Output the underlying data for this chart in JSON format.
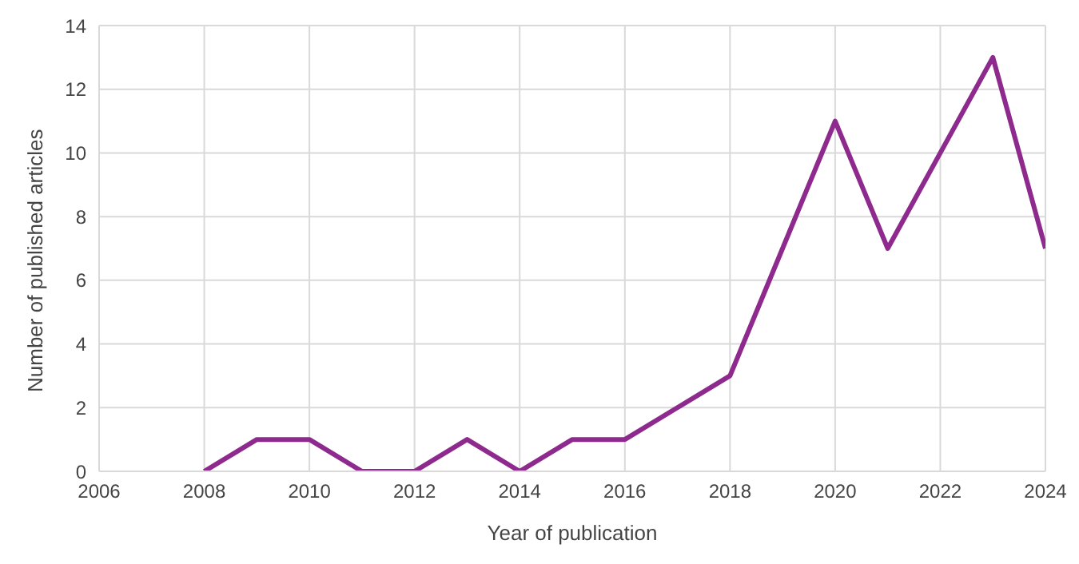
{
  "chart_data": {
    "type": "line",
    "xlabel": "Year of publication",
    "ylabel": "Number of published articles",
    "x": [
      2008,
      2009,
      2010,
      2011,
      2012,
      2013,
      2014,
      2015,
      2016,
      2017,
      2018,
      2019,
      2020,
      2021,
      2022,
      2023,
      2024
    ],
    "series": [
      {
        "color": "#8e2a8e",
        "values": [
          0,
          1,
          1,
          0,
          0,
          1,
          0,
          1,
          1,
          2,
          3,
          7,
          11,
          7,
          10,
          13,
          7
        ]
      }
    ],
    "xlim": [
      2006,
      2024
    ],
    "xticks": [
      2006,
      2008,
      2010,
      2012,
      2014,
      2016,
      2018,
      2020,
      2022,
      2024
    ],
    "ylim": [
      0,
      14
    ],
    "yticks": [
      0,
      2,
      4,
      6,
      8,
      10,
      12,
      14
    ],
    "grid": true,
    "marker": "none",
    "line_style": "solid"
  }
}
